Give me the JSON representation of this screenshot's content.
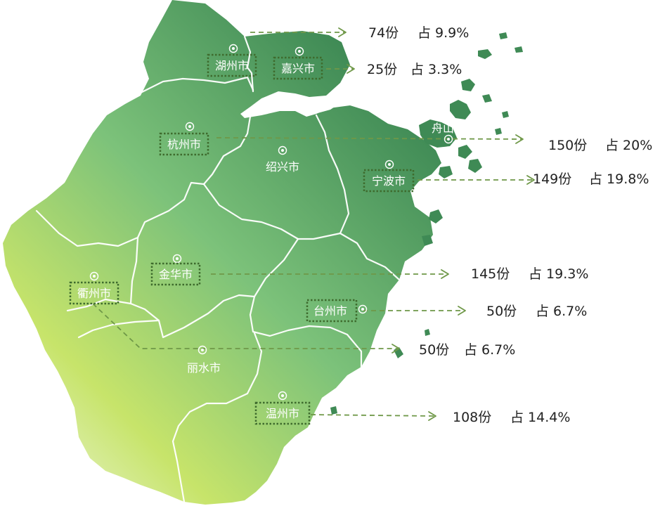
{
  "colors": {
    "province_dark": "#3f8a55",
    "province_mid": "#7cc27a",
    "province_light": "#c7e46a",
    "province_pale": "#e4f2c2",
    "leader_line": "#6f9848",
    "label_frame": "#3e6b2d",
    "city_text": "#ffffff",
    "stat_text": "#222222"
  },
  "cities": [
    {
      "id": "huzhou",
      "name": "湖州市",
      "framed": true,
      "stat": {
        "count": "74份",
        "share": "占 9.9%"
      }
    },
    {
      "id": "jiaxing",
      "name": "嘉兴市",
      "framed": true,
      "stat": {
        "count": "25份",
        "share": "占 3.3%"
      }
    },
    {
      "id": "hangzhou",
      "name": "杭州市",
      "framed": true,
      "stat": {
        "count": "150份",
        "share": "占 20%"
      }
    },
    {
      "id": "shaoxing",
      "name": "绍兴市",
      "framed": false,
      "stat": null
    },
    {
      "id": "zhoushan",
      "name": "舟山市",
      "framed": false,
      "stat": null
    },
    {
      "id": "ningbo",
      "name": "宁波市",
      "framed": true,
      "stat": {
        "count": "149份",
        "share": "占 19.8%"
      }
    },
    {
      "id": "jinhua",
      "name": "金华市",
      "framed": true,
      "stat": {
        "count": "145份",
        "share": "占 19.3%"
      }
    },
    {
      "id": "quzhou",
      "name": "衢州市",
      "framed": true,
      "stat": {
        "count": "50份",
        "share": "占 6.7%"
      }
    },
    {
      "id": "taizhou",
      "name": "台州市",
      "framed": true,
      "stat": {
        "count": "50份",
        "share": "占 6.7%"
      }
    },
    {
      "id": "lishui",
      "name": "丽水市",
      "framed": false,
      "stat": null
    },
    {
      "id": "wenzhou",
      "name": "温州市",
      "framed": true,
      "stat": {
        "count": "108份",
        "share": "占 14.4%"
      }
    }
  ]
}
